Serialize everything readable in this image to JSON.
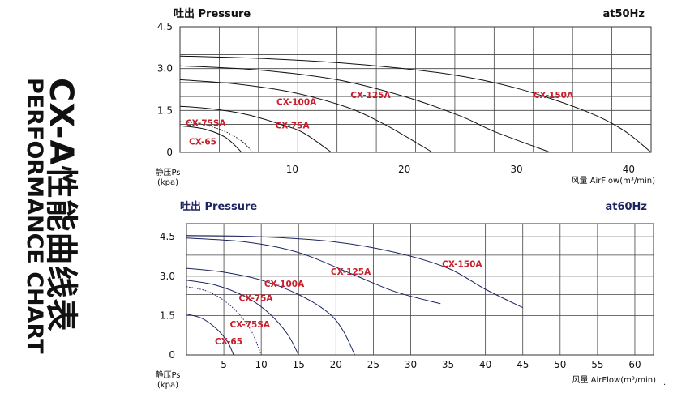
{
  "sidebar": {
    "title_cn": "CX-A性能曲线表",
    "title_en": "PERFORMANCE CHART"
  },
  "chart_data": [
    {
      "type": "line",
      "title": "吐出 Pressure",
      "frequency": "at50Hz",
      "ylabel": "静压Ps",
      "yunit": "(kpa)",
      "xlabel": "风量 AirFlow(m³/min)",
      "xlim": [
        0,
        42
      ],
      "ylim": [
        0,
        4.5
      ],
      "xgrid": [
        3.5,
        7,
        10.5,
        14,
        17.5,
        21,
        24.5,
        28,
        31.5,
        35,
        38.5,
        42
      ],
      "ygrid": [
        1,
        1.5,
        2,
        2.5,
        3,
        3.5,
        4.5
      ],
      "xticks": [
        {
          "v": 10,
          "label": "10"
        },
        {
          "v": 20,
          "label": "20"
        },
        {
          "v": 30,
          "label": "30"
        },
        {
          "v": 40,
          "label": "40"
        }
      ],
      "yticks": [
        {
          "v": 4.5,
          "label": "4.5"
        },
        {
          "v": 3.0,
          "label": "3.0"
        },
        {
          "v": 1.5,
          "label": "1.5"
        },
        {
          "v": 0,
          "label": "0"
        }
      ],
      "line_color": "#111111",
      "label_color": "#c8202c",
      "series": [
        {
          "name": "CX-150A",
          "style": "solid",
          "points": [
            [
              0,
              3.45
            ],
            [
              8,
              3.35
            ],
            [
              16,
              3.15
            ],
            [
              24,
              2.8
            ],
            [
              30,
              2.3
            ],
            [
              36,
              1.5
            ],
            [
              39.5,
              0.8
            ],
            [
              42,
              0
            ]
          ]
        },
        {
          "name": "CX-125A",
          "style": "solid",
          "points": [
            [
              0,
              3.1
            ],
            [
              7,
              2.95
            ],
            [
              14,
              2.6
            ],
            [
              20,
              2.0
            ],
            [
              25,
              1.3
            ],
            [
              28,
              0.75
            ],
            [
              33,
              0
            ]
          ]
        },
        {
          "name": "CX-100A",
          "style": "solid",
          "points": [
            [
              0,
              2.6
            ],
            [
              5,
              2.45
            ],
            [
              10,
              2.15
            ],
            [
              15,
              1.6
            ],
            [
              18,
              1.05
            ],
            [
              20,
              0.6
            ],
            [
              22.5,
              0
            ]
          ]
        },
        {
          "name": "CX-75A",
          "style": "solid",
          "points": [
            [
              0,
              1.65
            ],
            [
              3,
              1.55
            ],
            [
              6,
              1.35
            ],
            [
              9,
              1.0
            ],
            [
              11,
              0.7
            ],
            [
              13.5,
              0
            ]
          ]
        },
        {
          "name": "CX-75SA",
          "style": "dotted",
          "points": [
            [
              0,
              1.1
            ],
            [
              2,
              1.0
            ],
            [
              4,
              0.75
            ],
            [
              5.5,
              0.4
            ],
            [
              6.5,
              0
            ]
          ]
        },
        {
          "name": "CX-65",
          "style": "solid",
          "points": [
            [
              0,
              0.95
            ],
            [
              2,
              0.85
            ],
            [
              4,
              0.55
            ],
            [
              5.5,
              0
            ]
          ]
        }
      ],
      "labels": [
        {
          "name": "CX-150A",
          "x": 31.5,
          "y": 1.95
        },
        {
          "name": "CX-125A",
          "x": 15.2,
          "y": 1.95
        },
        {
          "name": "CX-100A",
          "x": 8.6,
          "y": 1.7
        },
        {
          "name": "CX-75A",
          "x": 8.5,
          "y": 0.85
        },
        {
          "name": "CX-75SA",
          "x": 0.5,
          "y": 0.95
        },
        {
          "name": "CX-65",
          "x": 0.8,
          "y": 0.28
        }
      ]
    },
    {
      "type": "line",
      "title": "吐出 Pressure",
      "frequency": "at60Hz",
      "ylabel": "静压Ps",
      "yunit": "(kpa)",
      "xlabel": "风量 AirFlow(m³/min)",
      "xlim": [
        0,
        62.5
      ],
      "ylim": [
        0,
        5
      ],
      "xgrid": [
        5,
        10,
        15,
        20,
        25,
        30,
        35,
        40,
        45,
        50,
        55,
        60
      ],
      "ygrid": [
        1.5,
        2.3,
        3.0,
        3.8,
        4.5
      ],
      "xticks": [
        {
          "v": 5,
          "label": "5"
        },
        {
          "v": 10,
          "label": "10"
        },
        {
          "v": 15,
          "label": "15"
        },
        {
          "v": 20,
          "label": "20"
        },
        {
          "v": 25,
          "label": "25"
        },
        {
          "v": 30,
          "label": "30"
        },
        {
          "v": 35,
          "label": "35"
        },
        {
          "v": 40,
          "label": "40"
        },
        {
          "v": 45,
          "label": "45"
        },
        {
          "v": 50,
          "label": "50"
        },
        {
          "v": 55,
          "label": "55"
        },
        {
          "v": 60,
          "label": "60"
        }
      ],
      "yticks": [
        {
          "v": 4.5,
          "label": "4.5"
        },
        {
          "v": 3.0,
          "label": "3.0"
        },
        {
          "v": 1.5,
          "label": "1.5"
        },
        {
          "v": 0,
          "label": "0"
        }
      ],
      "line_color": "#1c2462",
      "label_color": "#c8202c",
      "series": [
        {
          "name": "CX-150A",
          "style": "solid",
          "points": [
            [
              0,
              4.55
            ],
            [
              10,
              4.5
            ],
            [
              20,
              4.3
            ],
            [
              28,
              3.9
            ],
            [
              35,
              3.3
            ],
            [
              40,
              2.5
            ],
            [
              45,
              1.8
            ]
          ]
        },
        {
          "name": "CX-125A",
          "style": "solid",
          "points": [
            [
              0,
              4.45
            ],
            [
              8,
              4.3
            ],
            [
              15,
              3.9
            ],
            [
              22,
              3.1
            ],
            [
              28,
              2.4
            ],
            [
              34,
              1.95
            ]
          ]
        },
        {
          "name": "CX-100A",
          "style": "solid",
          "points": [
            [
              0,
              3.3
            ],
            [
              5,
              3.15
            ],
            [
              10,
              2.85
            ],
            [
              15,
              2.3
            ],
            [
              19,
              1.6
            ],
            [
              21,
              0.9
            ],
            [
              22.5,
              0
            ]
          ]
        },
        {
          "name": "CX-75A",
          "style": "solid",
          "points": [
            [
              0,
              2.85
            ],
            [
              4,
              2.65
            ],
            [
              8,
              2.2
            ],
            [
              11,
              1.6
            ],
            [
              13.5,
              0.8
            ],
            [
              15,
              0
            ]
          ]
        },
        {
          "name": "CX-75SA",
          "style": "dotted",
          "points": [
            [
              0,
              2.6
            ],
            [
              3,
              2.4
            ],
            [
              6,
              1.85
            ],
            [
              8.5,
              1.0
            ],
            [
              10,
              0
            ]
          ]
        },
        {
          "name": "CX-65",
          "style": "solid",
          "points": [
            [
              0,
              1.55
            ],
            [
              2,
              1.4
            ],
            [
              4,
              1.0
            ],
            [
              5.5,
              0.5
            ],
            [
              6.3,
              0
            ]
          ]
        }
      ],
      "labels": [
        {
          "name": "CX-150A",
          "x": 34.2,
          "y": 3.35
        },
        {
          "name": "CX-125A",
          "x": 19.3,
          "y": 3.05
        },
        {
          "name": "CX-100A",
          "x": 10.4,
          "y": 2.6
        },
        {
          "name": "CX-75A",
          "x": 7.0,
          "y": 2.05
        },
        {
          "name": "CX-75SA",
          "x": 5.8,
          "y": 1.05
        },
        {
          "name": "CX-65",
          "x": 3.8,
          "y": 0.4
        }
      ]
    }
  ]
}
